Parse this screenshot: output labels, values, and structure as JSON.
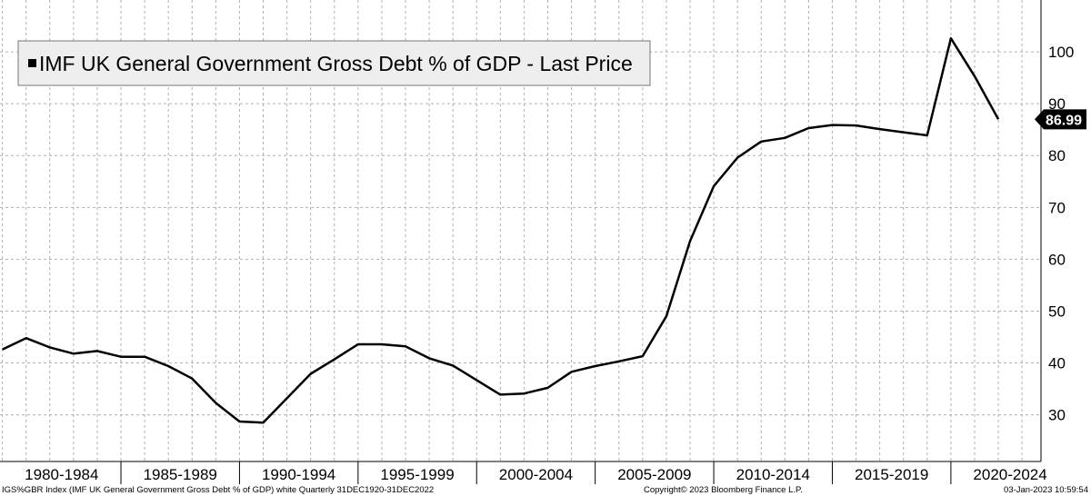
{
  "chart_data": {
    "type": "line",
    "series": [
      {
        "name": "IMF UK General Government Gross Debt % of GDP - Last Price",
        "x": [
          1980,
          1981,
          1982,
          1983,
          1984,
          1985,
          1986,
          1987,
          1988,
          1989,
          1990,
          1991,
          1992,
          1993,
          1994,
          1995,
          1996,
          1997,
          1998,
          1999,
          2000,
          2001,
          2002,
          2003,
          2004,
          2005,
          2006,
          2007,
          2008,
          2009,
          2010,
          2011,
          2012,
          2013,
          2014,
          2015,
          2016,
          2017,
          2018,
          2019,
          2020,
          2021,
          2022
        ],
        "values": [
          42.6,
          44.8,
          43.0,
          41.8,
          42.3,
          41.2,
          41.2,
          39.4,
          37.0,
          32.3,
          28.7,
          28.5,
          33.2,
          37.9,
          40.7,
          43.6,
          43.6,
          43.2,
          40.9,
          39.5,
          36.7,
          33.9,
          34.1,
          35.2,
          38.3,
          39.4,
          40.3,
          41.3,
          49.0,
          63.5,
          74.1,
          79.6,
          82.7,
          83.4,
          85.3,
          85.9,
          85.8,
          85.1,
          84.5,
          83.9,
          102.6,
          95.3,
          86.99
        ]
      }
    ],
    "legend": "IMF UK General Government Gross Debt % of GDP - Last Price",
    "legend_position": "top-left",
    "last_value_label": "86.99",
    "yticks": [
      "30",
      "40",
      "50",
      "60",
      "70",
      "80",
      "90",
      "100"
    ],
    "ylim": [
      21,
      110
    ],
    "xlim": [
      1979.9,
      2023.8
    ],
    "xtick_labels": [
      "1980-1984",
      "1985-1989",
      "1990-1994",
      "1995-1999",
      "2000-2004",
      "2005-2009",
      "2010-2014",
      "2015-2019",
      "2020-2024"
    ],
    "xtick_centers": [
      1982.5,
      1987.5,
      1992.5,
      1997.5,
      2002.5,
      2007.5,
      2012.5,
      2017.5,
      2022.5
    ],
    "grid": true,
    "y_axis_side": "right",
    "colors": {
      "line": "#000000",
      "grid": "#b0b0b0",
      "label_bg": "#000000"
    }
  },
  "footer": {
    "left": "IGS%GBR Index (IMF UK General Government Gross Debt % of GDP) white  Quarterly 31DEC1920-31DEC2022",
    "center": "Copyright© 2023 Bloomberg Finance L.P.",
    "right": "03-Jan-2023 10:59:54"
  }
}
